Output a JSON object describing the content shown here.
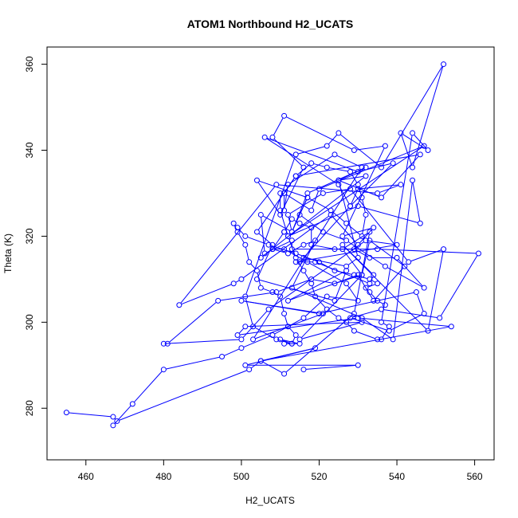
{
  "chart_data": {
    "type": "line",
    "title": "ATOM1 Northbound H2_UCATS",
    "xlabel": "H2_UCATS",
    "ylabel": "Theta (K)",
    "xlim": [
      450,
      565
    ],
    "ylim": [
      268,
      364
    ],
    "xticks": [
      460,
      480,
      500,
      520,
      540,
      560
    ],
    "yticks": [
      280,
      300,
      320,
      340,
      360
    ],
    "grid": false,
    "markers": "open-circle",
    "line_color": "#0000ff",
    "series": [
      {
        "x": [
          455,
          467,
          468,
          502,
          505,
          511,
          529,
          533,
          526,
          531,
          524,
          518,
          509,
          494,
          481,
          480,
          500,
          507,
          532,
          540,
          514,
          519,
          533,
          534,
          526,
          548,
          552,
          543,
          528,
          521,
          512,
          513,
          517,
          504,
          510,
          516,
          508,
          511,
          529,
          537,
          526,
          534,
          530,
          523,
          500,
          498,
          484,
          509,
          535,
          541,
          530,
          528,
          525,
          506,
          530,
          539,
          528,
          515,
          516,
          527,
          530,
          525,
          532,
          505,
          508,
          512,
          516,
          519,
          513,
          531,
          539,
          544,
          546,
          530,
          512,
          547,
          520,
          518,
          511,
          511,
          512,
          524,
          531,
          503,
          521,
          500,
          520,
          545,
          547,
          538,
          528,
          536,
          551,
          561,
          535,
          513,
          513,
          506,
          505,
          513,
          517,
          532,
          525,
          536,
          546,
          514,
          504,
          508,
          504,
          524,
          527,
          512,
          530,
          534,
          542,
          533,
          531,
          515,
          531,
          501,
          499,
          530,
          554,
          505,
          519,
          501,
          530,
          516
        ],
        "y": [
          279,
          278,
          277,
          289,
          291,
          288,
          302,
          321,
          317,
          311,
          309,
          310,
          307,
          305,
          295,
          295,
          296,
          303,
          319,
          318,
          314,
          314,
          309,
          311,
          318,
          298,
          317,
          314,
          331,
          330,
          325,
          321,
          329,
          333,
          325,
          336,
          343,
          348,
          340,
          341,
          320,
          322,
          318,
          325,
          310,
          309,
          304,
          332,
          330,
          332,
          331,
          327,
          332,
          343,
          335,
          337,
          327,
          314,
          315,
          313,
          315,
          333,
          334,
          315,
          317,
          316,
          318,
          319,
          308,
          301,
          296,
          333,
          323,
          327,
          320,
          341,
          331,
          326,
          330,
          326,
          332,
          339,
          336,
          296,
          302,
          305,
          302,
          307,
          302,
          298,
          301,
          303,
          301,
          316,
          317,
          317,
          319,
          316,
          325,
          321,
          330,
          336,
          333,
          329,
          339,
          334,
          321,
          318,
          310,
          305,
          312,
          305,
          311,
          305,
          313,
          319,
          311,
          296,
          300,
          299,
          297,
          301,
          299,
          291,
          294,
          290,
          290,
          289
        ]
      },
      {
        "x": [
          467,
          472,
          480,
          495,
          500,
          508,
          516,
          522,
          530,
          527,
          517,
          511,
          508,
          511,
          511,
          513,
          515,
          518,
          518,
          524,
          529,
          533,
          540,
          547,
          537,
          527,
          521,
          515,
          517,
          523,
          527,
          531,
          532,
          531,
          530,
          528,
          522,
          518,
          514,
          511,
          510,
          510,
          512,
          514,
          516,
          518,
          519,
          522,
          525,
          527,
          529,
          535,
          536,
          538,
          536,
          544,
          548,
          541,
          544,
          552,
          536,
          525,
          522,
          514,
          501,
          503,
          509,
          513,
          510,
          515,
          511,
          513,
          514,
          512,
          511,
          510,
          508,
          505,
          504,
          502,
          501,
          499,
          498,
          499,
          501,
          507,
          514,
          520,
          524,
          529,
          533,
          535,
          532,
          533,
          535,
          537
        ],
        "y": [
          276,
          281,
          289,
          292,
          294,
          297,
          301,
          306,
          305,
          309,
          314,
          317,
          317,
          321,
          321,
          324,
          323,
          322,
          318,
          317,
          317,
          315,
          315,
          308,
          313,
          319,
          321,
          325,
          329,
          326,
          323,
          320,
          325,
          329,
          332,
          335,
          336,
          337,
          334,
          330,
          330,
          326,
          320,
          315,
          312,
          309,
          306,
          303,
          301,
          300,
          298,
          296,
          296,
          299,
          300,
          344,
          340,
          344,
          336,
          360,
          336,
          344,
          341,
          339,
          306,
          299,
          296,
          295,
          296,
          295,
          295,
          295,
          297,
          299,
          302,
          306,
          307,
          308,
          312,
          314,
          318,
          321,
          323,
          322,
          320,
          318,
          316,
          314,
          312,
          311,
          310,
          309,
          308,
          307,
          305,
          304
        ]
      }
    ]
  }
}
